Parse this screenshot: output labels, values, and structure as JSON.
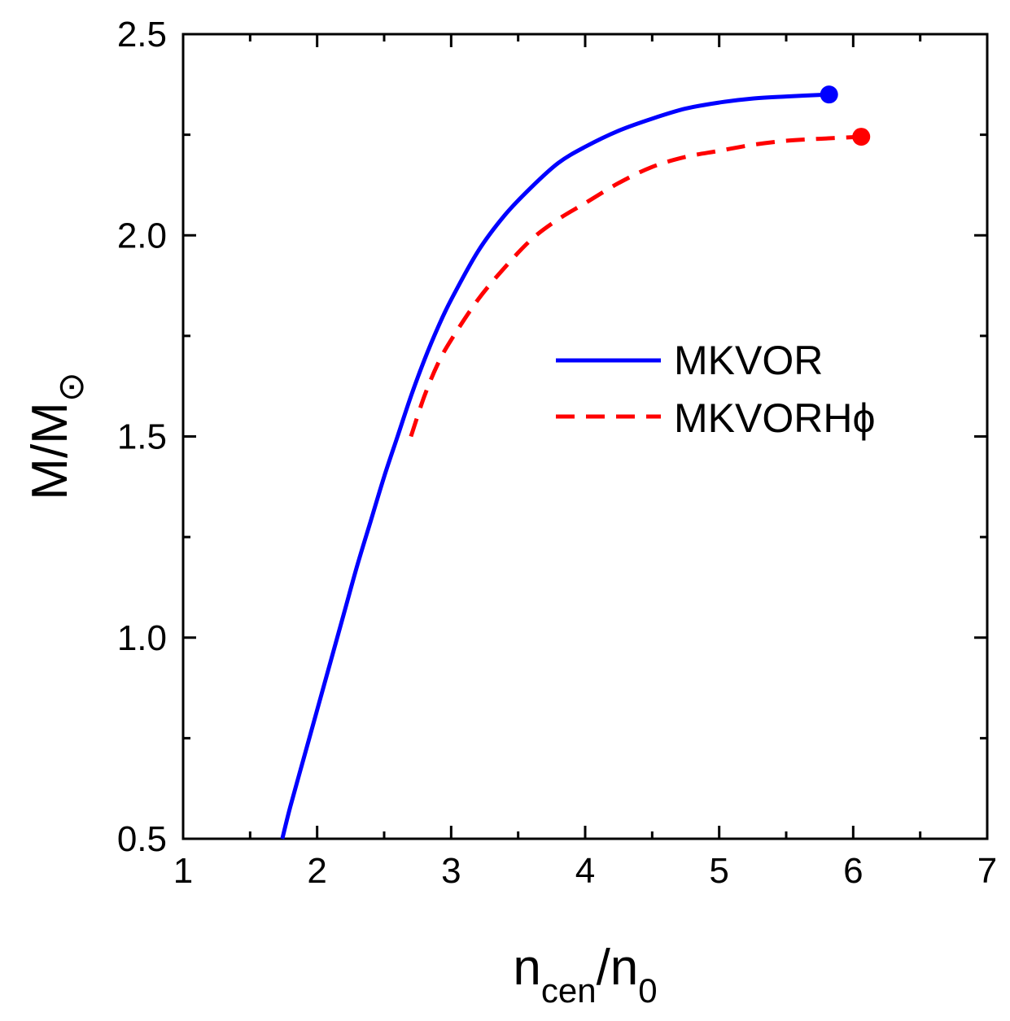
{
  "chart_data": {
    "type": "line",
    "title": "",
    "xlabel": {
      "base": "n",
      "sub": "cen",
      "sep": "/",
      "base2": "n",
      "sub2": "0"
    },
    "ylabel": {
      "base": "M/M",
      "sub": "⊙"
    },
    "xlim": [
      1,
      7
    ],
    "ylim": [
      0.5,
      2.5
    ],
    "x_ticks": [
      1,
      2,
      3,
      4,
      5,
      6,
      7
    ],
    "x_tick_labels": [
      "1",
      "2",
      "3",
      "4",
      "5",
      "6",
      "7"
    ],
    "y_ticks": [
      0.5,
      1.0,
      1.5,
      2.0,
      2.5
    ],
    "y_tick_labels": [
      "0.5",
      "1.0",
      "1.5",
      "2.0",
      "2.5"
    ],
    "grid": false,
    "legend_position": "center-right",
    "series": [
      {
        "name": "MKVOR",
        "color": "#0000ff",
        "style": "solid",
        "x": [
          1.74,
          1.8,
          1.9,
          2.0,
          2.1,
          2.2,
          2.3,
          2.4,
          2.5,
          2.6,
          2.7,
          2.8,
          2.9,
          3.0,
          3.2,
          3.4,
          3.6,
          3.8,
          4.0,
          4.25,
          4.5,
          4.75,
          5.0,
          5.25,
          5.5,
          5.82
        ],
        "y": [
          0.5,
          0.58,
          0.7,
          0.82,
          0.94,
          1.06,
          1.18,
          1.29,
          1.4,
          1.5,
          1.6,
          1.69,
          1.77,
          1.84,
          1.96,
          2.05,
          2.12,
          2.18,
          2.22,
          2.26,
          2.29,
          2.315,
          2.33,
          2.34,
          2.345,
          2.35
        ],
        "endpoint": {
          "x": 5.82,
          "y": 2.35
        }
      },
      {
        "name": "MKVORHϕ",
        "color": "#ff0000",
        "style": "dashed",
        "x": [
          2.7,
          2.8,
          2.9,
          3.0,
          3.2,
          3.4,
          3.6,
          3.8,
          4.0,
          4.25,
          4.5,
          4.75,
          5.0,
          5.25,
          5.5,
          5.75,
          6.06
        ],
        "y": [
          1.5,
          1.6,
          1.68,
          1.74,
          1.84,
          1.92,
          1.99,
          2.04,
          2.08,
          2.13,
          2.17,
          2.195,
          2.21,
          2.225,
          2.235,
          2.24,
          2.245
        ],
        "endpoint": {
          "x": 6.06,
          "y": 2.245
        }
      }
    ]
  }
}
